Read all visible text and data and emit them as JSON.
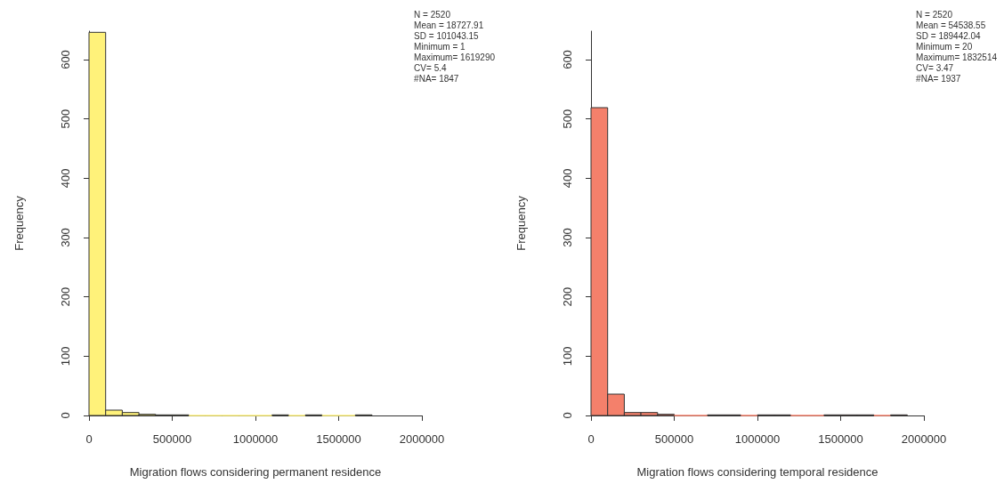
{
  "chart_data": [
    {
      "type": "histogram",
      "xlabel": "Migration flows considering permanent residence",
      "ylabel": "Frequency",
      "bins": [
        0,
        100000,
        200000,
        300000,
        400000,
        500000,
        600000,
        700000,
        800000,
        900000,
        1000000,
        1100000,
        1200000,
        1300000,
        1400000,
        1500000,
        1600000,
        1700000
      ],
      "values": [
        646,
        9,
        5,
        2,
        1,
        1,
        0,
        0,
        0,
        0,
        0,
        1,
        0,
        1,
        0,
        0,
        1
      ],
      "color": "#fff27a",
      "xlim": [
        0,
        2000000
      ],
      "xticks": [
        0,
        500000,
        1000000,
        1500000,
        2000000
      ],
      "ylim": [
        0,
        648
      ],
      "yticks": [
        0,
        100,
        200,
        300,
        400,
        500,
        600
      ],
      "grid": false,
      "annotations": [
        "N = 2520",
        "Mean = 18727.91",
        "SD = 101043.15",
        "Minimum = 1",
        "Maximum= 1619290",
        "CV= 5.4",
        "#NA= 1847"
      ]
    },
    {
      "type": "histogram",
      "xlabel": "Migration flows considering temporal residence",
      "ylabel": "Frequency",
      "bins": [
        0,
        100000,
        200000,
        300000,
        400000,
        500000,
        600000,
        700000,
        800000,
        900000,
        1000000,
        1100000,
        1200000,
        1300000,
        1400000,
        1500000,
        1600000,
        1700000,
        1800000,
        1900000
      ],
      "values": [
        519,
        36,
        5,
        5,
        2,
        0,
        0,
        1,
        1,
        0,
        1,
        1,
        0,
        0,
        1,
        1,
        1,
        0,
        1
      ],
      "color": "#f4806b",
      "xlim": [
        0,
        2000000
      ],
      "xticks": [
        0,
        500000,
        1000000,
        1500000,
        2000000
      ],
      "ylim": [
        0,
        648
      ],
      "yticks": [
        0,
        100,
        200,
        300,
        400,
        500,
        600
      ],
      "grid": false,
      "annotations": [
        "N = 2520",
        "Mean = 54538.55",
        "SD = 189442.04",
        "Minimum = 20",
        "Maximum= 1832514",
        "CV= 3.47",
        "#NA= 1937"
      ]
    }
  ]
}
